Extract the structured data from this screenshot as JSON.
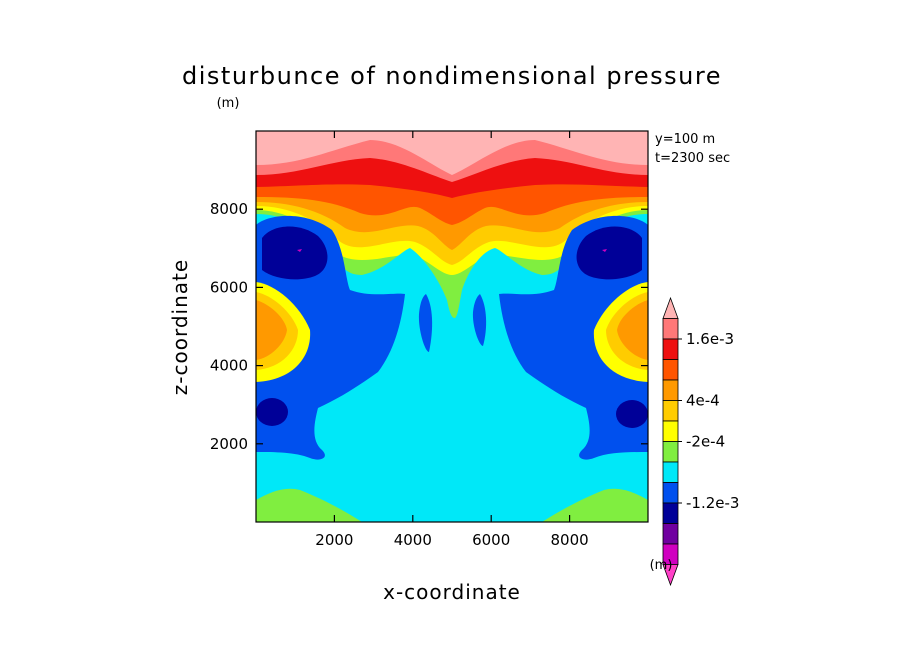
{
  "chart_data": {
    "type": "heatmap",
    "title": "disturbunce of nondimensional pressure",
    "unit_label": "(m)",
    "xlabel": "x-coordinate",
    "ylabel": "z-coordinate",
    "xlim": [
      0,
      10000
    ],
    "ylim": [
      0,
      10000
    ],
    "x_ticks": [
      2000,
      4000,
      6000,
      8000
    ],
    "y_ticks": [
      2000,
      4000,
      6000,
      8000
    ],
    "x_tick_labels": [
      "2000",
      "4000",
      "6000",
      "8000"
    ],
    "y_tick_labels": [
      "2000",
      "4000",
      "6000",
      "8000"
    ],
    "annotation_y": "y=100 m",
    "annotation_t": "t=2300 sec",
    "colorbar": {
      "labels": [
        "1.6e-3",
        "4e-4",
        "-2e-4",
        "-1.2e-3"
      ],
      "unit": "(m)",
      "colors": [
        "#ffb4b4",
        "#ff7878",
        "#ee1010",
        "#ff5500",
        "#ff9900",
        "#ffcc00",
        "#ffff00",
        "#80ee40",
        "#00e8f8",
        "#0050ee",
        "#000098",
        "#7000a0",
        "#d000c0",
        "#ff40c8"
      ]
    },
    "colors": {
      "band_top": "#ffb4b4",
      "band_1": "#ff7878",
      "band_2": "#ee1010",
      "band_3": "#ff5500",
      "band_4": "#ff9900",
      "band_5": "#ffcc00",
      "band_6": "#ffff00",
      "band_7": "#80ee40",
      "band_8": "#00e8f8",
      "blue": "#0050ee",
      "navy": "#000098",
      "magenta": "#d000c0"
    }
  }
}
